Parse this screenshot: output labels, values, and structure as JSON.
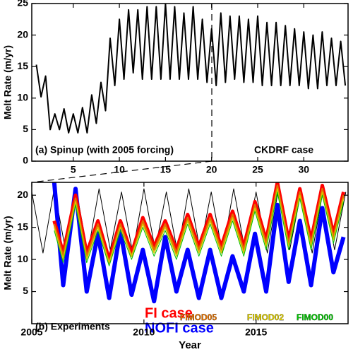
{
  "chart_data": [
    {
      "type": "line",
      "ylabel": "Melt Rate (m/yr)",
      "annotations": [
        "(a) Spinup (with 2005 forcing)",
        "CKDRF case"
      ],
      "xlim": [
        0.5,
        34.8
      ],
      "xticks": [
        5,
        10,
        15,
        20,
        25,
        30
      ],
      "ylim": [
        0,
        25
      ],
      "yticks": [
        0,
        5,
        10,
        15,
        20,
        25
      ],
      "series": [
        {
          "color": "#000000",
          "x": [
            1,
            1.5,
            2,
            2.5,
            3,
            3.5,
            4,
            4.5,
            5,
            5.5,
            6,
            6.5,
            7,
            7.5,
            8,
            8.5,
            9,
            9.5,
            10,
            10.5,
            11,
            11.5,
            12,
            12.5,
            13,
            13.5,
            14,
            14.5,
            15,
            15.5,
            16,
            16.5,
            17,
            17.5,
            18,
            18.5,
            19,
            19.5,
            20,
            20.5,
            21,
            21.5,
            22,
            22.5,
            23,
            23.5,
            24,
            24.5,
            25,
            25.5,
            26,
            26.5,
            27,
            27.5,
            28,
            28.5,
            29,
            29.5,
            30,
            30.5,
            31,
            31.5,
            32,
            32.5,
            33,
            33.5,
            34,
            34.5
          ],
          "values": [
            15.3,
            10.2,
            13.5,
            5,
            7.5,
            5,
            8.3,
            4.5,
            7.5,
            4.5,
            8.5,
            4.5,
            10.5,
            6,
            12.5,
            8,
            19.5,
            12,
            22.5,
            13,
            24,
            14,
            24,
            13,
            24.5,
            13,
            24.5,
            13,
            25,
            13,
            24.5,
            13,
            23.5,
            13,
            24.5,
            13,
            22.5,
            12.5,
            21,
            12,
            23.5,
            12.5,
            23,
            13,
            23,
            12.5,
            22.5,
            12.5,
            23,
            12,
            22,
            12,
            22,
            12,
            21.5,
            12,
            21,
            12,
            20.5,
            11.5,
            20,
            11.5,
            20.5,
            12,
            19.5,
            12,
            19,
            12
          ]
        }
      ]
    },
    {
      "type": "line",
      "ylabel": "Melt Rate (m/yr)",
      "xlabel": "Year",
      "annotations": [
        "(b) Experiments"
      ],
      "xlim": [
        2005,
        2019.1
      ],
      "xticks": [
        2005,
        2010,
        2015
      ],
      "ylim": [
        0,
        22
      ],
      "yticks": [
        5,
        10,
        15,
        20
      ],
      "series": [
        {
          "color": "#000000",
          "x": [
            2005,
            2005.5,
            2006,
            2006.5,
            2007,
            2007.5,
            2008,
            2008.5,
            2009,
            2009.5,
            2010,
            2010.5,
            2011,
            2011.5,
            2012,
            2012.5,
            2013,
            2013.5,
            2014,
            2014.5,
            2015,
            2015.5,
            2016,
            2016.5,
            2017,
            2017.5,
            2018,
            2018.5,
            2019
          ],
          "values": [
            20.5,
            11,
            21,
            11.5,
            20.5,
            11,
            21,
            11.5,
            20.5,
            11,
            21,
            11.5,
            20.5,
            11,
            21,
            11.5,
            20.5,
            11,
            21,
            11.5,
            20.5,
            11,
            21,
            11.5,
            20.5,
            11,
            21,
            11.5,
            20.5
          ]
        },
        {
          "name": "NOFI case",
          "color": "#0000ff",
          "x": [
            2006,
            2006.4,
            2006.95,
            2007.45,
            2007.95,
            2008.45,
            2008.95,
            2009.45,
            2009.95,
            2010.45,
            2010.95,
            2011.45,
            2011.95,
            2012.45,
            2012.95,
            2013.45,
            2013.95,
            2014.45,
            2014.95,
            2015.45,
            2015.95,
            2016.45,
            2016.95,
            2017.45,
            2017.95,
            2018.45,
            2018.9
          ],
          "values": [
            22,
            6,
            21,
            5,
            14,
            4,
            14.5,
            4.5,
            11.5,
            3.5,
            13.5,
            5,
            11.5,
            4,
            11.5,
            4,
            10.5,
            5,
            14,
            5,
            18.5,
            6.5,
            16,
            6,
            18,
            8,
            13.5
          ]
        },
        {
          "name": "FI case",
          "color": "#ff0000",
          "x": [
            2006,
            2006.4,
            2006.95,
            2007.45,
            2007.95,
            2008.45,
            2008.95,
            2009.45,
            2009.95,
            2010.45,
            2010.95,
            2011.45,
            2011.95,
            2012.45,
            2012.95,
            2013.45,
            2013.95,
            2014.45,
            2014.95,
            2015.45,
            2015.95,
            2016.45,
            2016.95,
            2017.45,
            2017.95,
            2018.45,
            2018.9
          ],
          "values": [
            16,
            11,
            20,
            11,
            16,
            10,
            16,
            11,
            16.5,
            12,
            16,
            11.5,
            17,
            12,
            17,
            12,
            17.5,
            12,
            19,
            13,
            22,
            13,
            21,
            13,
            21.5,
            14,
            20.5
          ]
        },
        {
          "name": "FIMOD05",
          "color": "#e07000",
          "x": [
            2006,
            2006.4,
            2006.95,
            2007.45,
            2007.95,
            2008.45,
            2008.95,
            2009.45,
            2009.95,
            2010.45,
            2010.95,
            2011.45,
            2011.95,
            2012.45,
            2012.95,
            2013.45,
            2013.95,
            2014.45,
            2014.95,
            2015.45,
            2015.95,
            2016.45,
            2016.95,
            2017.45,
            2017.95,
            2018.45,
            2018.9
          ],
          "values": [
            15.5,
            10.5,
            19.5,
            10.5,
            15.5,
            9.5,
            15.5,
            10.5,
            16,
            11.5,
            15.5,
            11,
            16.5,
            11.5,
            16.5,
            11.5,
            17,
            11.5,
            18.5,
            12.5,
            21.5,
            12.5,
            20.5,
            12.5,
            21,
            13.5,
            20
          ]
        },
        {
          "name": "FIMOD02",
          "color": "#d8c800",
          "x": [
            2006,
            2006.4,
            2006.95,
            2007.45,
            2007.95,
            2008.45,
            2008.95,
            2009.45,
            2009.95,
            2010.45,
            2010.95,
            2011.45,
            2011.95,
            2012.45,
            2012.95,
            2013.45,
            2013.95,
            2014.45,
            2014.95,
            2015.45,
            2015.95,
            2016.45,
            2016.95,
            2017.45,
            2017.95,
            2018.45,
            2018.9
          ],
          "values": [
            15,
            10,
            19,
            10,
            15,
            9.5,
            15,
            10.5,
            15.5,
            11,
            15,
            10.5,
            16,
            11,
            16,
            11,
            16.5,
            11,
            18,
            12,
            21,
            12,
            20,
            12,
            20.5,
            13,
            19.5
          ]
        },
        {
          "name": "FIMOD00",
          "color": "#00c000",
          "x": [
            2006,
            2006.4,
            2006.95,
            2007.45,
            2007.95,
            2008.45,
            2008.95,
            2009.45,
            2009.95,
            2010.45,
            2010.95,
            2011.45,
            2011.95,
            2012.45,
            2012.95,
            2013.45,
            2013.95,
            2014.45,
            2014.95,
            2015.45,
            2015.95,
            2016.45,
            2016.95,
            2017.45,
            2017.95,
            2018.45,
            2018.9
          ],
          "values": [
            14.5,
            9.5,
            18.5,
            9.5,
            14.5,
            9,
            14.5,
            10,
            15,
            10.5,
            14.5,
            10,
            15.5,
            10.5,
            15.5,
            10.5,
            16,
            10.5,
            17.5,
            11.5,
            20.5,
            11.5,
            19.5,
            11.5,
            20,
            12.5,
            19
          ]
        }
      ]
    }
  ]
}
